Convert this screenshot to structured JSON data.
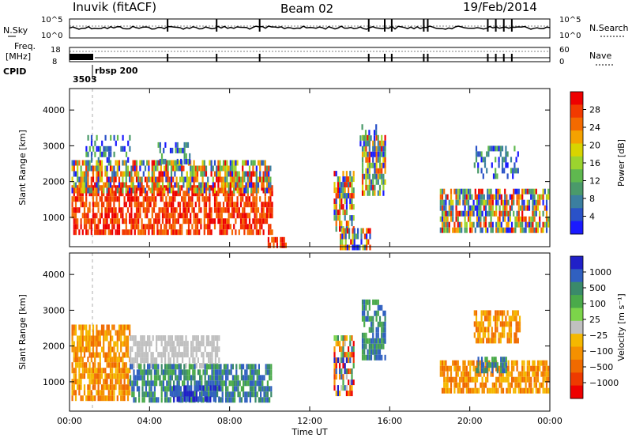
{
  "header": {
    "station": "Inuvik (fitACF)",
    "beam": "Beam 02",
    "date": "19/Feb/2014"
  },
  "summary_panel": {
    "nsky_label": "N.Sky",
    "nsky_ticks": [
      "10^5",
      "10^0"
    ],
    "nsearch_label": "N.Search",
    "nsearch_ticks": [
      "10^5",
      "10^0"
    ],
    "freq_label_line1": "Freq.",
    "freq_label_line2": "[MHz]",
    "freq_ticks": [
      "18",
      "8"
    ],
    "nave_label": "Nave",
    "nave_ticks": [
      "60",
      "0"
    ],
    "cpid_label": "CPID",
    "cpid_value": "3503",
    "cpid_name": "rbsp 200"
  },
  "chart_data": [
    {
      "type": "heatmap",
      "name": "power-panel",
      "xlabel": "",
      "ylabel": "Slant Range [km]",
      "x_ticks": [
        "00:00",
        "04:00",
        "08:00",
        "12:00",
        "16:00",
        "20:00",
        "00:00"
      ],
      "x_range_hours": [
        0,
        24
      ],
      "y_ticks": [
        1000,
        2000,
        3000,
        4000
      ],
      "ylim": [
        180,
        4600
      ],
      "colorbar": {
        "label": "Power [dB]",
        "ticks": [
          "4",
          "8",
          "12",
          "16",
          "20",
          "24",
          "28"
        ],
        "range": [
          0,
          32
        ],
        "colors": [
          "#1a1aff",
          "#2a52c8",
          "#3b7fa0",
          "#4a9a6a",
          "#5fb84f",
          "#9bd42e",
          "#d8d400",
          "#f5a200",
          "#f46a00",
          "#f23a00",
          "#ee0000"
        ]
      },
      "echo_regions": [
        {
          "t0": 0.1,
          "t1": 10.1,
          "r0": 600,
          "r1": 1900,
          "power": "high"
        },
        {
          "t0": 0.1,
          "t1": 10.0,
          "r0": 1800,
          "r1": 2600,
          "power": "mixed"
        },
        {
          "t0": 0.8,
          "t1": 3.0,
          "r0": 2600,
          "r1": 3300,
          "power": "low"
        },
        {
          "t0": 4.4,
          "t1": 6.0,
          "r0": 2600,
          "r1": 3100,
          "power": "low"
        },
        {
          "t0": 9.9,
          "t1": 10.8,
          "r0": 200,
          "r1": 450,
          "power": "high"
        },
        {
          "t0": 13.2,
          "t1": 14.2,
          "r0": 700,
          "r1": 2300,
          "power": "mixed"
        },
        {
          "t0": 14.6,
          "t1": 15.8,
          "r0": 1700,
          "r1": 3300,
          "power": "mixed"
        },
        {
          "t0": 14.5,
          "t1": 15.3,
          "r0": 3000,
          "r1": 3600,
          "power": "low"
        },
        {
          "t0": 13.5,
          "t1": 15.0,
          "r0": 200,
          "r1": 700,
          "power": "mixed"
        },
        {
          "t0": 18.5,
          "t1": 23.9,
          "r0": 700,
          "r1": 1800,
          "power": "mixed"
        },
        {
          "t0": 20.2,
          "t1": 22.5,
          "r0": 2200,
          "r1": 3000,
          "power": "low"
        }
      ]
    },
    {
      "type": "heatmap",
      "name": "velocity-panel",
      "xlabel": "Time UT",
      "ylabel": "Slant Range [km]",
      "x_ticks": [
        "00:00",
        "04:00",
        "08:00",
        "12:00",
        "16:00",
        "20:00",
        "00:00"
      ],
      "x_range_hours": [
        0,
        24
      ],
      "y_ticks": [
        1000,
        2000,
        3000,
        4000
      ],
      "ylim": [
        180,
        4600
      ],
      "colorbar": {
        "label": "Velocity [m s⁻¹]",
        "ticks": [
          "1000",
          "500",
          "100",
          "25",
          "−25",
          "−100",
          "−500",
          "−1000"
        ],
        "colors": [
          "#2020c8",
          "#3060c0",
          "#3a8a6a",
          "#4aaa4a",
          "#7cd44a",
          "#c0c0c0",
          "#f5b800",
          "#f59000",
          "#f06a00",
          "#ee3a00",
          "#ee0000"
        ]
      },
      "echo_regions": [
        {
          "t0": 0.1,
          "t1": 3.0,
          "r0": 500,
          "r1": 1700,
          "velocity": "negative"
        },
        {
          "t0": 3.0,
          "t1": 7.5,
          "r0": 1400,
          "r1": 2300,
          "velocity": "near-zero"
        },
        {
          "t0": 3.0,
          "t1": 10.1,
          "r0": 500,
          "r1": 1500,
          "velocity": "positive"
        },
        {
          "t0": 5.0,
          "t1": 7.5,
          "r0": 500,
          "r1": 900,
          "velocity": "high-positive"
        },
        {
          "t0": 0.1,
          "t1": 3.0,
          "r0": 1800,
          "r1": 2600,
          "velocity": "negative"
        },
        {
          "t0": 13.2,
          "t1": 14.2,
          "r0": 700,
          "r1": 2300,
          "velocity": "mixed"
        },
        {
          "t0": 14.6,
          "t1": 15.8,
          "r0": 1600,
          "r1": 3300,
          "velocity": "positive"
        },
        {
          "t0": 18.5,
          "t1": 23.9,
          "r0": 700,
          "r1": 1600,
          "velocity": "negative"
        },
        {
          "t0": 20.3,
          "t1": 21.8,
          "r0": 1300,
          "r1": 1700,
          "velocity": "positive"
        },
        {
          "t0": 20.2,
          "t1": 22.5,
          "r0": 2200,
          "r1": 3000,
          "velocity": "negative"
        }
      ]
    }
  ]
}
